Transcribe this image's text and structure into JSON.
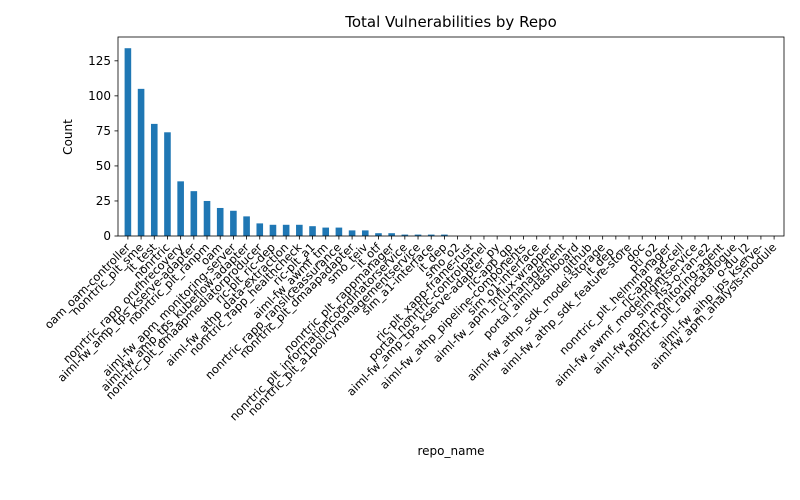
{
  "chart_data": {
    "type": "bar",
    "title": "Total Vulnerabilities by Repo",
    "xlabel": "repo_name",
    "ylabel": "Count",
    "ylim": [
      0,
      142
    ],
    "yticks": [
      0,
      25,
      50,
      75,
      100,
      125
    ],
    "bar_color": "#1f77b4",
    "grid": false,
    "legend": "none",
    "categories": [
      "oam_oam-controller",
      "nonrtric_plt_sme",
      "it_test",
      "nonrtric",
      "nonrtric_rapp_orufhrecovery",
      "aiml-fw_amp_tps_kserve-adapter",
      "nonrtric_plt_ranpm",
      "oam",
      "aiml-fw_apm_monitoring-server",
      "aiml-fw_amp_tps_kubeflow-adapter",
      "nonrtric_plt_dmaapmediatorproducer",
      "ric-plt_ric-dep",
      "aiml-fw_athp_data-extraction",
      "nonrtric_rapp_healthcheck",
      "ric-plt_a1",
      "aiml-fw_awmf_tm",
      "nonrtric_rapp_ransliceassurance",
      "nonrtric_plt_dmaapadapter",
      "smo_teiv",
      "it_otf",
      "nonrtric_plt_rappmanager",
      "nonrtric_plt_informationcoordinatorservice",
      "nonrtric_plt_a1policymanagementservice",
      "sim_a1-interface",
      "it_dep",
      "smo_o2",
      "ric-plt_xapp-frame-rust",
      "portal_nonrtric-controlpanel",
      "aiml-fw_amp_tps_kserve-adapter_py",
      "ric-app_qp",
      "aiml-fw_athp_pipeline-components",
      "sim_o1-interface",
      "aiml-fw_apm_influx-wrapper",
      "ci-management",
      "portal_aiml-dashboard",
      ".github",
      "aiml-fw_athp_sdk_model-storage",
      "it_dep_",
      "aiml-fw_athp_sdk_feature-store",
      "doc",
      "pti_o2",
      "nonrtric_plt_helmmanager",
      "ric-app_ad-cell",
      "aiml-fw_awmf_modelmgmtservice",
      "sim_ns3-o-ran-e2",
      "aiml-fw_apm_monitoring-agent",
      "nonrtric_plt_rappcatalogue",
      "o-du_l2",
      "aiml-fw_aihp_ips_kserve-",
      "aiml-fw_apm_analysis-module"
    ],
    "values": [
      134,
      105,
      80,
      74,
      39,
      32,
      25,
      20,
      18,
      14,
      9,
      8,
      8,
      8,
      7,
      6,
      6,
      4,
      4,
      2,
      2,
      1,
      1,
      1,
      1,
      0,
      0,
      0,
      0,
      0,
      0,
      0,
      0,
      0,
      0,
      0,
      0,
      0,
      0,
      0,
      0,
      0,
      0,
      0,
      0,
      0,
      0,
      0,
      0,
      0
    ]
  }
}
